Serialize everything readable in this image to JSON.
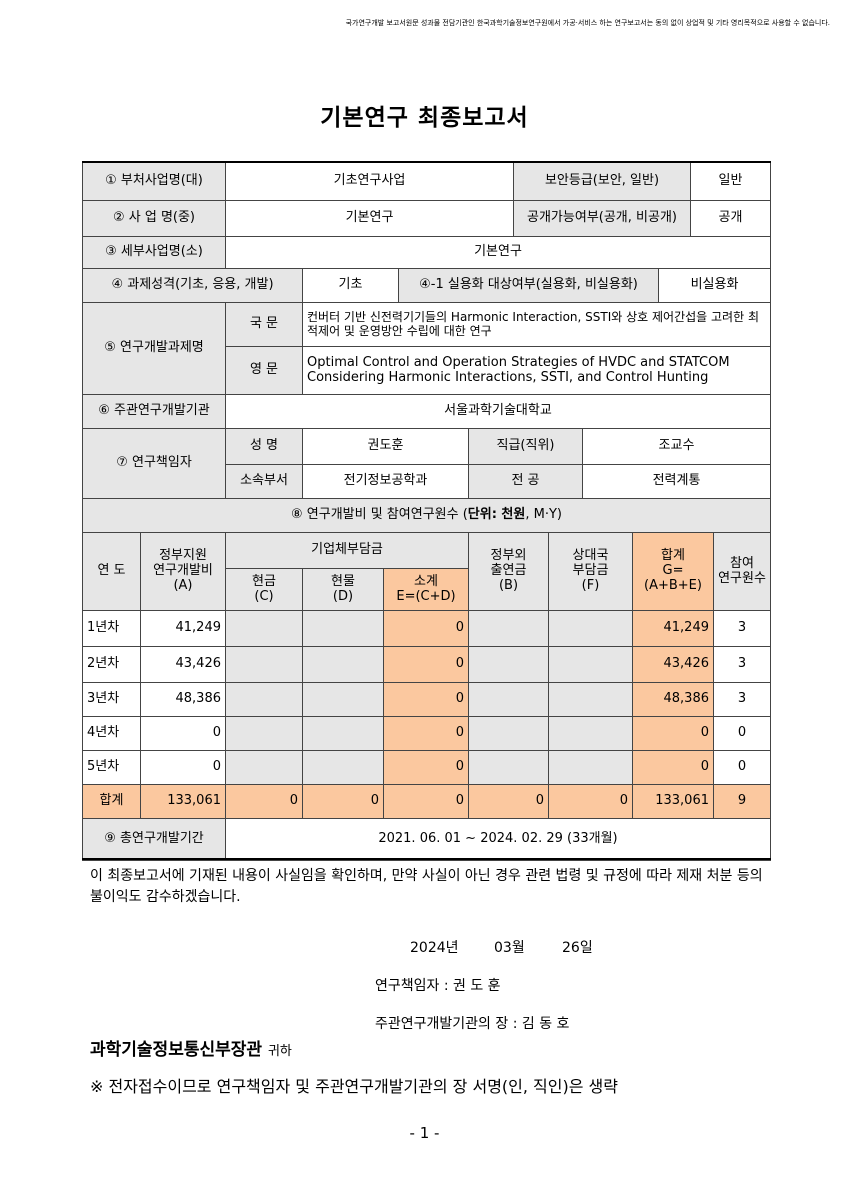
{
  "header_note": "국가연구개발 보고서원문 성과물 전담기관인 한국과학기술정보연구원에서 가공·서비스 하는 연구보고서는 동의 없이 상업적 및 기타 영리목적으로 사용할 수 없습니다.",
  "title": "기본연구 최종보고서",
  "info": {
    "ministry_program": {
      "label": "① 부처사업명(대)",
      "value": "기초연구사업"
    },
    "security": {
      "label": "보안등급(보안, 일반)",
      "value": "일반"
    },
    "program": {
      "label": "② 사 업 명(중)",
      "value": "기본연구"
    },
    "disclosure": {
      "label": "공개가능여부(공개, 비공개)",
      "value": "공개"
    },
    "sub_program": {
      "label": "③ 세부사업명(소)",
      "value": "기본연구"
    },
    "nature": {
      "label": "④ 과제성격(기초, 응용, 개발)",
      "value": "기초"
    },
    "commercial": {
      "label": "④-1 실용화 대상여부(실용화, 비실용화)",
      "value": "비실용화"
    },
    "project_title": {
      "label": "⑤ 연구개발과제명",
      "korean_label": "국 문",
      "korean": "컨버터 기반 신전력기기들의 Harmonic Interaction, SSTI와 상호 제어간섭을 고려한 최적제어 및 운영방안 수립에 대한 연구",
      "english_label": "영 문",
      "english": "Optimal Control and Operation Strategies of HVDC and STATCOM Considering Harmonic Interactions, SSTI, and Control Hunting"
    },
    "institution": {
      "label": "⑥ 주관연구개발기관",
      "value": "서울과학기술대학교"
    },
    "pi": {
      "label": "⑦ 연구책임자",
      "name_label": "성 명",
      "name": "권도훈",
      "position_label": "직급(직위)",
      "position": "조교수",
      "dept_label": "소속부서",
      "dept": "전기정보공학과",
      "major_label": "전 공",
      "major": "전력계통"
    }
  },
  "budget": {
    "title_start": "⑧ 연구개발비 및 참여연구원수 (",
    "unit": "단위: 천원",
    "title_end": ", M·Y)",
    "headers": {
      "year": "연 도",
      "gov": "정부지원\n연구개발비\n(A)",
      "company": "기업체부담금",
      "cash": "현금\n(C)",
      "inkind": "현물\n(D)",
      "subtotal": "소계\nE=(C+D)",
      "nongov": "정부외\n출연금\n(B)",
      "partner": "상대국\n부담금\n(F)",
      "total": "합계\nG=(A+B+E)",
      "staff": "참여\n연구원수"
    },
    "rows": [
      {
        "year": "1년차",
        "gov": "41,249",
        "subtotal": "0",
        "total": "41,249",
        "staff": "3"
      },
      {
        "year": "2년차",
        "gov": "43,426",
        "subtotal": "0",
        "total": "43,426",
        "staff": "3"
      },
      {
        "year": "3년차",
        "gov": "48,386",
        "subtotal": "0",
        "total": "48,386",
        "staff": "3"
      },
      {
        "year": "4년차",
        "gov": "0",
        "subtotal": "0",
        "total": "0",
        "staff": "0"
      },
      {
        "year": "5년차",
        "gov": "0",
        "subtotal": "0",
        "total": "0",
        "staff": "0"
      },
      {
        "year": "합계",
        "gov": "133,061",
        "cash": "0",
        "inkind": "0",
        "subtotal": "0",
        "nongov": "0",
        "partner": "0",
        "total": "133,061",
        "staff": "9"
      }
    ]
  },
  "period": {
    "label": "⑨ 총연구개발기간",
    "value": "2021. 06. 01 ~ 2024. 02. 29 (33개월)"
  },
  "statement": "이 최종보고서에 기재된 내용이 사실임을 확인하며, 만약 사실이 아닌 경우 관련 법령 및 규정에 따라 제재 처분 등의 불이익도 감수하겠습니다.",
  "date": {
    "year": "2024년",
    "month": "03월",
    "day": "26일"
  },
  "signers": {
    "pi": "연구책임자 : 권 도 훈",
    "head": "주관연구개발기관의 장 : 김 동 호"
  },
  "recipient": {
    "name": "과학기술정보통신부장관",
    "suffix": "귀하"
  },
  "note": "※ 전자접수이므로 연구책임자 및 주관연구개발기관의 장 서명(인, 직인)은 생략",
  "page_number": "- 1 -"
}
